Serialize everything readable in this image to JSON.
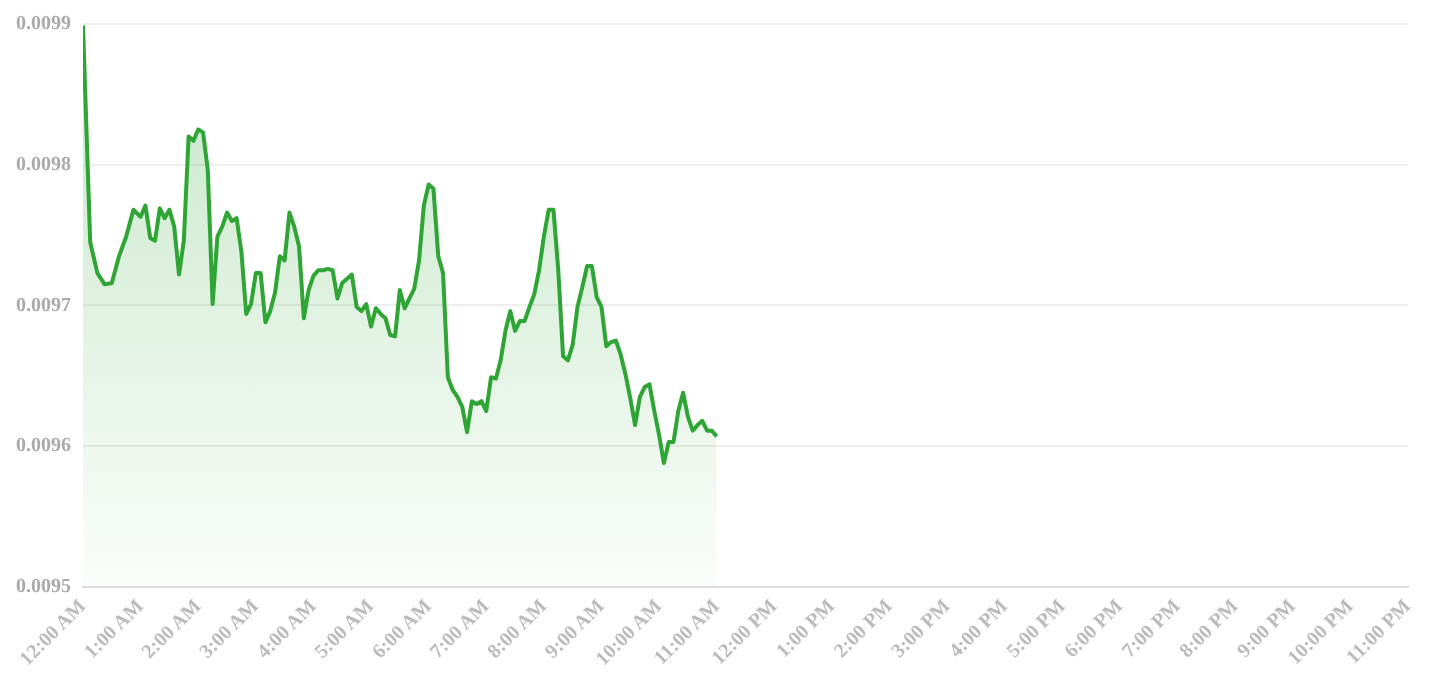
{
  "chart_data": {
    "type": "area",
    "color": "#2ea534",
    "grid": "y",
    "marker": "none",
    "ylim": [
      0.0095,
      0.0099
    ],
    "yticks": [
      0.0095,
      0.0096,
      0.0097,
      0.0098,
      0.0099
    ],
    "xlim": [
      0,
      23
    ],
    "xticks": [
      {
        "value": 0,
        "label": "12:00 AM"
      },
      {
        "value": 1,
        "label": "1:00 AM"
      },
      {
        "value": 2,
        "label": "2:00 AM"
      },
      {
        "value": 3,
        "label": "3:00 AM"
      },
      {
        "value": 4,
        "label": "4:00 AM"
      },
      {
        "value": 5,
        "label": "5:00 AM"
      },
      {
        "value": 6,
        "label": "6:00 AM"
      },
      {
        "value": 7,
        "label": "7:00 AM"
      },
      {
        "value": 8,
        "label": "8:00 AM"
      },
      {
        "value": 9,
        "label": "9:00 AM"
      },
      {
        "value": 10,
        "label": "10:00 AM"
      },
      {
        "value": 11,
        "label": "11:00 AM"
      },
      {
        "value": 12,
        "label": "12:00 PM"
      },
      {
        "value": 13,
        "label": "1:00 PM"
      },
      {
        "value": 14,
        "label": "2:00 PM"
      },
      {
        "value": 15,
        "label": "3:00 PM"
      },
      {
        "value": 16,
        "label": "4:00 PM"
      },
      {
        "value": 17,
        "label": "5:00 PM"
      },
      {
        "value": 18,
        "label": "6:00 PM"
      },
      {
        "value": 19,
        "label": "7:00 PM"
      },
      {
        "value": 20,
        "label": "8:00 PM"
      },
      {
        "value": 21,
        "label": "9:00 PM"
      },
      {
        "value": 22,
        "label": "10:00 PM"
      },
      {
        "value": 23,
        "label": "11:00 PM"
      }
    ],
    "x": [
      0,
      0.125,
      0.25,
      0.375,
      0.5,
      0.625,
      0.75,
      0.875,
      1,
      1.0833,
      1.1667,
      1.25,
      1.3333,
      1.4167,
      1.5,
      1.5833,
      1.6667,
      1.75,
      1.8333,
      1.9167,
      2,
      2.0833,
      2.1667,
      2.25,
      2.3333,
      2.4167,
      2.5,
      2.5833,
      2.6667,
      2.75,
      2.8333,
      2.9167,
      3,
      3.0833,
      3.1667,
      3.25,
      3.3333,
      3.4167,
      3.5,
      3.5833,
      3.6667,
      3.75,
      3.8333,
      3.9167,
      4,
      4.0833,
      4.1667,
      4.25,
      4.3333,
      4.4167,
      4.5,
      4.5833,
      4.6667,
      4.75,
      4.8333,
      4.9167,
      5,
      5.0833,
      5.1667,
      5.25,
      5.3333,
      5.4167,
      5.5,
      5.5833,
      5.6667,
      5.75,
      5.8333,
      5.9167,
      6,
      6.0833,
      6.1667,
      6.25,
      6.3333,
      6.4167,
      6.5,
      6.5833,
      6.6667,
      6.75,
      6.8333,
      6.9167,
      7,
      7.0833,
      7.1667,
      7.25,
      7.3333,
      7.4167,
      7.5,
      7.5833,
      7.6667,
      7.75,
      7.8333,
      7.9167,
      8,
      8.0833,
      8.1667,
      8.25,
      8.3333,
      8.4167,
      8.5,
      8.5833,
      8.6667,
      8.75,
      8.8333,
      8.9167,
      9,
      9.0833,
      9.1667,
      9.25,
      9.3333,
      9.4167,
      9.5,
      9.5833,
      9.6667,
      9.75,
      9.8333,
      9.9167,
      10,
      10.0833,
      10.1667,
      10.25,
      10.3333,
      10.4167,
      10.5,
      10.5833,
      10.6667,
      10.75,
      10.8333,
      10.9167,
      11
    ],
    "values": [
      0.009899,
      0.009745,
      0.009723,
      0.009715,
      0.009716,
      0.009735,
      0.009749,
      0.009768,
      0.009763,
      0.009771,
      0.009748,
      0.009746,
      0.009769,
      0.009762,
      0.009768,
      0.009756,
      0.009722,
      0.009746,
      0.00982,
      0.009817,
      0.009825,
      0.009823,
      0.009796,
      0.009701,
      0.009749,
      0.009756,
      0.009766,
      0.00976,
      0.009762,
      0.009738,
      0.009694,
      0.009701,
      0.009723,
      0.009723,
      0.009688,
      0.009696,
      0.009709,
      0.009735,
      0.009732,
      0.009766,
      0.009756,
      0.009742,
      0.009691,
      0.009711,
      0.009721,
      0.009725,
      0.009725,
      0.009726,
      0.009725,
      0.009705,
      0.009716,
      0.009719,
      0.009722,
      0.009699,
      0.009696,
      0.009701,
      0.009685,
      0.009698,
      0.009694,
      0.009691,
      0.009679,
      0.009678,
      0.009711,
      0.009698,
      0.009705,
      0.009712,
      0.009732,
      0.009771,
      0.009786,
      0.009783,
      0.009735,
      0.009723,
      0.009649,
      0.00964,
      0.009635,
      0.009628,
      0.00961,
      0.009632,
      0.00963,
      0.009632,
      0.009625,
      0.009649,
      0.009648,
      0.009661,
      0.009682,
      0.009696,
      0.009682,
      0.009689,
      0.009689,
      0.009699,
      0.009708,
      0.009725,
      0.009749,
      0.009768,
      0.009768,
      0.009725,
      0.009664,
      0.009661,
      0.009672,
      0.009699,
      0.009713,
      0.009728,
      0.009728,
      0.009706,
      0.009699,
      0.009671,
      0.009674,
      0.009675,
      0.009665,
      0.009651,
      0.009634,
      0.009615,
      0.009635,
      0.009642,
      0.009644,
      0.009625,
      0.009608,
      0.009588,
      0.009603,
      0.009603,
      0.009625,
      0.009638,
      0.009621,
      0.009611,
      0.009615,
      0.009618,
      0.009611,
      0.009611,
      0.009607
    ]
  }
}
